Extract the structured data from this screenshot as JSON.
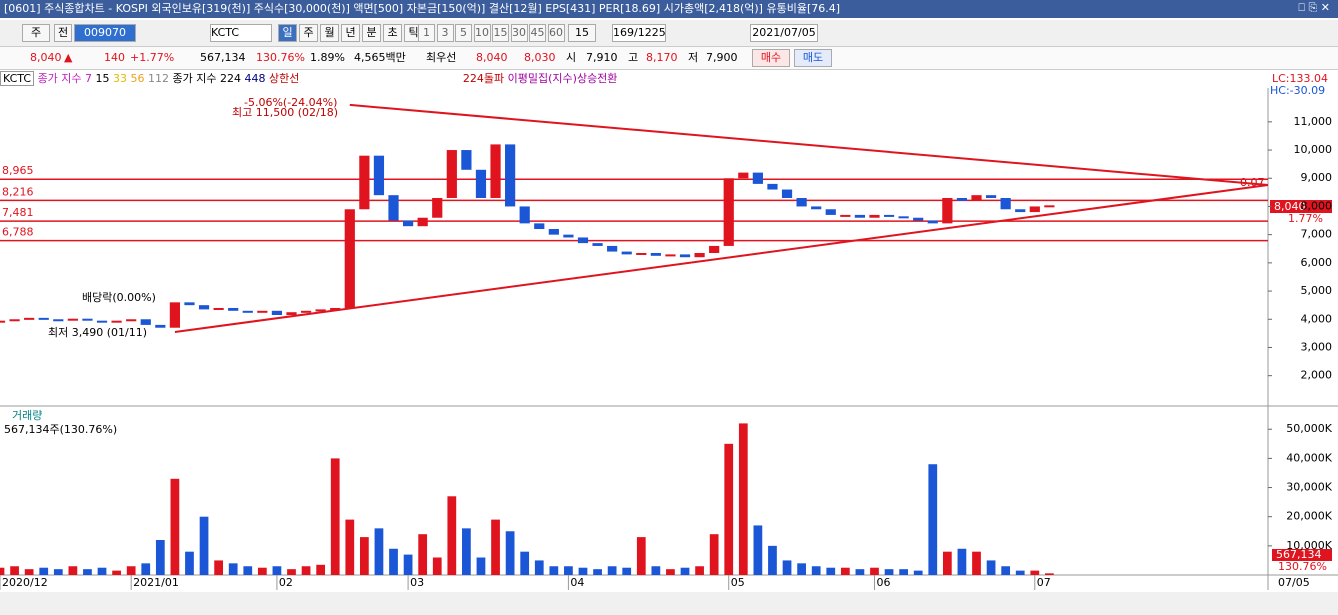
{
  "ui": {
    "title_bar": "[0601] 주식종합차트 - KOSPI 외국인보유[319(천)] 주식수[30,000(천)] 액면[500] 자본금[150(억)] 결산[12월] EPS[431] PER[18.69] 시가총액[2,418(억)] 유통비율[76.4]",
    "toolbar": {
      "market": "주",
      "prev": "전",
      "code": "009070",
      "name": "KCTC",
      "periods": [
        "일",
        "주",
        "월",
        "년",
        "분",
        "초",
        "틱"
      ],
      "intervals": [
        "1",
        "3",
        "5",
        "10",
        "15",
        "30",
        "45",
        "60"
      ],
      "interval_value": "15",
      "count": "169/1225",
      "date": "2021/07/05"
    },
    "quote": {
      "price": "8,040",
      "arrow": "▲",
      "change": "140",
      "rate": "+1.77%",
      "volume": "567,134",
      "volume_rate": "130.76%",
      "turnover": "1.89%",
      "amount": "4,565백만",
      "best_label": "최우선",
      "ask": "8,040",
      "bid": "8,030",
      "open_label": "시",
      "open": "7,910",
      "high_label": "고",
      "high": "8,170",
      "low_label": "저",
      "low": "7,900",
      "buy": "매수",
      "sell": "매도"
    },
    "legend": {
      "name": "KCTC",
      "ma_label": "종가 지수 7",
      "ma": [
        "15",
        "33",
        "56",
        "112"
      ],
      "ma2_label": "종가 지수 224",
      "ma3": "448",
      "upper": "상한선",
      "breakout": "224돌파",
      "signal": "이평밀집(지수)상승전환"
    },
    "price_info": {
      "lc": "LC:133.04",
      "hc": "HC:-30.09",
      "last": "8,040",
      "rate": "1.77%",
      "trend_value": "0.07"
    },
    "annotations": {
      "drop": "-5.06%(-24.04%)",
      "high": "최고 11,500 (02/18)",
      "dividend": "배당락(0.00%)",
      "low": "최저 3,490 (01/11)"
    },
    "volume_info": {
      "title": "거래량",
      "current": "567,134주(130.76%)",
      "last": "567,134",
      "rate": "130.76%"
    },
    "last_date": "07/05"
  },
  "chart_data": [
    {
      "type": "candlestick",
      "x": [
        0,
        2,
        4,
        6,
        8,
        10,
        12,
        14,
        16,
        18,
        20,
        22,
        24,
        26,
        28,
        30,
        32,
        34,
        36,
        38,
        40,
        42,
        44,
        46,
        48,
        50,
        52,
        54,
        56,
        58,
        60,
        62,
        64,
        66,
        68,
        70,
        72,
        74,
        76,
        78,
        80,
        82,
        84,
        86,
        88,
        90,
        92,
        94,
        96,
        98,
        100,
        102,
        104,
        106,
        108,
        110,
        112,
        114,
        116,
        118,
        120,
        122,
        124,
        126,
        128,
        130,
        132,
        134,
        136,
        138,
        140,
        142,
        144
      ],
      "values": [
        3950,
        4000,
        4050,
        4000,
        3980,
        4020,
        3950,
        3900,
        3950,
        4000,
        3800,
        3700,
        4600,
        4500,
        4350,
        4400,
        4300,
        4250,
        4300,
        4150,
        4250,
        4300,
        4350,
        4400,
        7900,
        9800,
        8400,
        7500,
        7300,
        7600,
        8300,
        10000,
        9300,
        8300,
        10200,
        8000,
        7400,
        7200,
        7000,
        6900,
        6700,
        6600,
        6400,
        6300,
        6350,
        6250,
        6300,
        6200,
        6350,
        6600,
        9000,
        9200,
        8800,
        8600,
        8300,
        8000,
        7900,
        7700,
        7700,
        7600,
        7700,
        7650,
        7600,
        7500,
        7400,
        8300,
        8200,
        8400,
        8300,
        7900,
        7800,
        8000,
        8040
      ],
      "up_color": "#e0141e",
      "down_color": "#1b56d6",
      "xlim": [
        0,
        174
      ],
      "ylim": [
        960,
        12200
      ],
      "yticks": [
        {
          "value": 2000,
          "label": "2,000"
        },
        {
          "value": 3000,
          "label": "3,000"
        },
        {
          "value": 4000,
          "label": "4,000"
        },
        {
          "value": 5000,
          "label": "5,000"
        },
        {
          "value": 6000,
          "label": "6,000"
        },
        {
          "value": 7000,
          "label": "7,000"
        },
        {
          "value": 8000,
          "label": "8,000"
        },
        {
          "value": 9000,
          "label": "9,000"
        },
        {
          "value": 10000,
          "label": "10,000"
        },
        {
          "value": 11000,
          "label": "11,000"
        }
      ],
      "xticks": [
        {
          "value": 0,
          "label": "2020/12"
        },
        {
          "value": 18,
          "label": "2021/01"
        },
        {
          "value": 38,
          "label": "02"
        },
        {
          "value": 56,
          "label": "03"
        },
        {
          "value": 78,
          "label": "04"
        },
        {
          "value": 100,
          "label": "05"
        },
        {
          "value": 120,
          "label": "06"
        },
        {
          "value": 142,
          "label": "07"
        }
      ],
      "levels": [
        {
          "value": 8965,
          "label": "8,965"
        },
        {
          "value": 8216,
          "label": "8,216"
        },
        {
          "value": 7481,
          "label": "7,481"
        },
        {
          "value": 6788,
          "label": "6,788"
        }
      ],
      "level_color": "#e0141e",
      "trendlines": [
        {
          "x": [
            48,
            174
          ],
          "y": [
            11600,
            8760
          ]
        },
        {
          "x": [
            24,
            174
          ],
          "y": [
            3550,
            8760
          ]
        }
      ]
    },
    {
      "type": "bar",
      "x": [
        0,
        2,
        4,
        6,
        8,
        10,
        12,
        14,
        16,
        18,
        20,
        22,
        24,
        26,
        28,
        30,
        32,
        34,
        36,
        38,
        40,
        42,
        44,
        46,
        48,
        50,
        52,
        54,
        56,
        58,
        60,
        62,
        64,
        66,
        68,
        70,
        72,
        74,
        76,
        78,
        80,
        82,
        84,
        86,
        88,
        90,
        92,
        94,
        96,
        98,
        100,
        102,
        104,
        106,
        108,
        110,
        112,
        114,
        116,
        118,
        120,
        122,
        124,
        126,
        128,
        130,
        132,
        134,
        136,
        138,
        140,
        142,
        144
      ],
      "values": [
        2500,
        3000,
        2000,
        2500,
        2000,
        3000,
        2000,
        2500,
        1500,
        3000,
        4000,
        12000,
        33000,
        8000,
        20000,
        5000,
        4000,
        3000,
        2500,
        3000,
        2000,
        3000,
        3500,
        40000,
        19000,
        13000,
        16000,
        9000,
        7000,
        14000,
        6000,
        27000,
        16000,
        6000,
        19000,
        15000,
        8000,
        5000,
        3000,
        3000,
        2500,
        2000,
        3000,
        2500,
        13000,
        3000,
        2000,
        2500,
        3000,
        14000,
        45000,
        52000,
        17000,
        10000,
        5000,
        4000,
        3000,
        2500,
        2500,
        2000,
        2500,
        2000,
        2000,
        1500,
        38000,
        8000,
        9000,
        8000,
        5000,
        3000,
        1500,
        1500,
        567.134
      ],
      "xlim": [
        0,
        174
      ],
      "ylim": [
        0,
        56600
      ],
      "yticks": [
        {
          "value": 10000,
          "label": "10,000K"
        },
        {
          "value": 20000,
          "label": "20,000K"
        },
        {
          "value": 30000,
          "label": "30,000K"
        },
        {
          "value": 40000,
          "label": "40,000K"
        },
        {
          "value": 50000,
          "label": "50,000K"
        }
      ]
    }
  ]
}
